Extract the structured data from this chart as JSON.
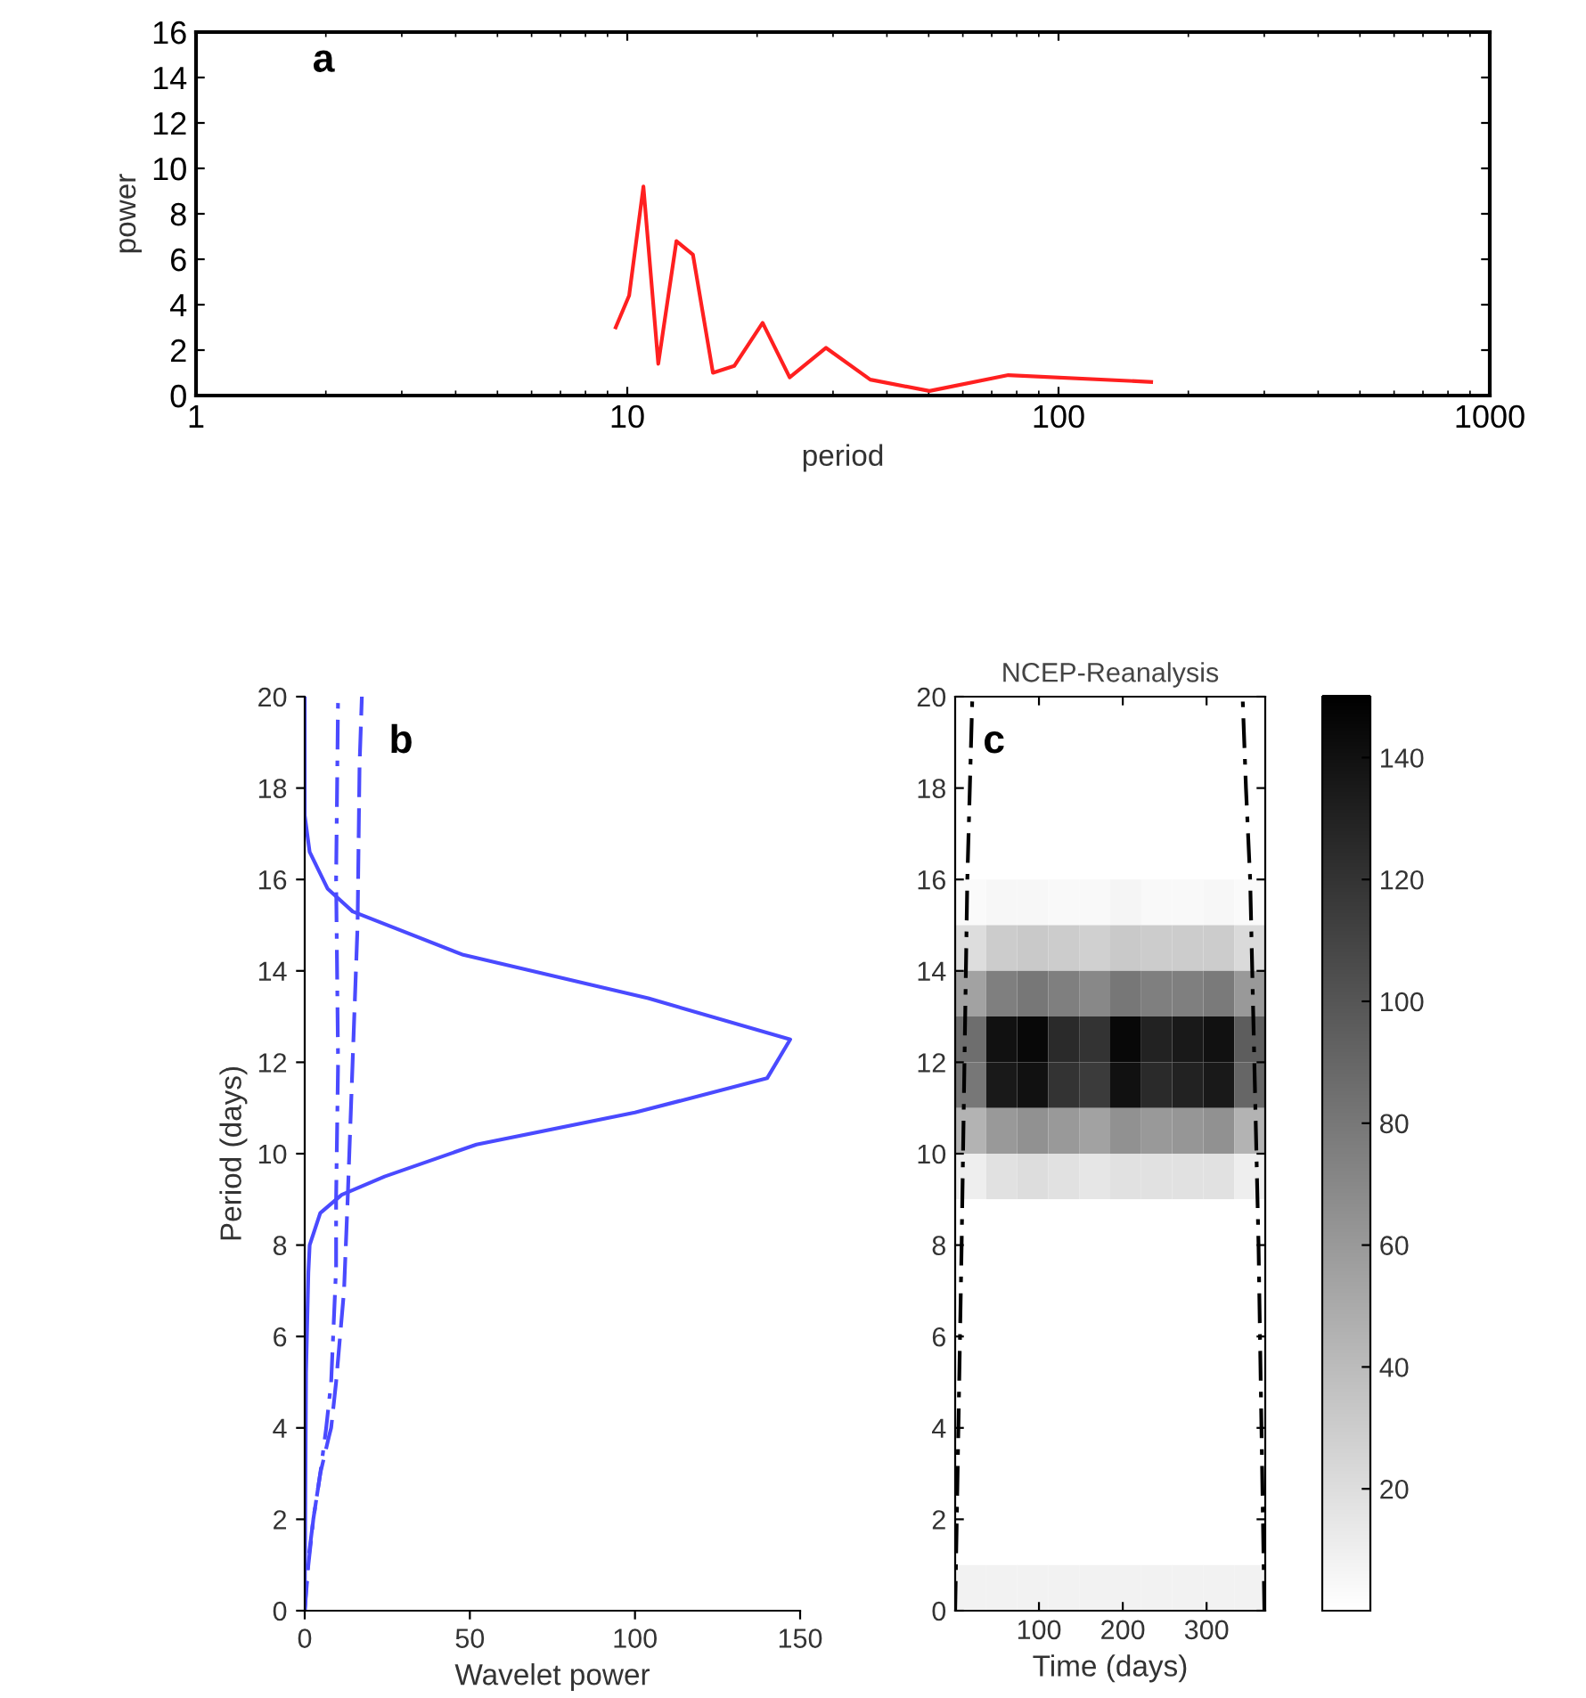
{
  "chart_data": [
    {
      "type": "line",
      "xlabel": "period",
      "ylabel": "power",
      "annotations": [
        "a"
      ],
      "log": "x",
      "xlim": [
        1,
        1000
      ],
      "xticks": [
        1,
        10,
        100,
        1000
      ],
      "ylim": [
        0,
        16
      ],
      "yticks": [
        0,
        2,
        4,
        6,
        8,
        10,
        12,
        14,
        16
      ],
      "grid": false,
      "legend": false,
      "series": [
        {
          "color": "#ff2020",
          "x": [
            9.4,
            10.1,
            10.9,
            11.8,
            13.0,
            14.2,
            15.8,
            17.7,
            20.6,
            23.8,
            28.9,
            36.6,
            50.2,
            76.5,
            164
          ],
          "values": [
            3.0,
            4.4,
            9.2,
            1.4,
            6.8,
            6.2,
            1.0,
            1.3,
            3.2,
            0.8,
            2.1,
            0.7,
            0.2,
            0.9,
            0.6
          ]
        }
      ]
    },
    {
      "type": "line",
      "xlabel": "Wavelet power",
      "ylabel": "Period (days)",
      "annotations": [
        "b"
      ],
      "xlim": [
        0,
        150
      ],
      "xticks": [
        0,
        50,
        100,
        150
      ],
      "ylim": [
        0,
        20
      ],
      "yticks": [
        0,
        2,
        4,
        6,
        8,
        10,
        12,
        14,
        16,
        18,
        20
      ],
      "grid": false,
      "legend": false,
      "series": [
        {
          "color": "#4a4aff",
          "line_style": "solid",
          "x": [
            0,
            0.4,
            1.1,
            1.5,
            4.7,
            11.2,
            24.2,
            52,
            100,
            140,
            147,
            104,
            48,
            14.5,
            6.9,
            1.5,
            0,
            0
          ],
          "values": [
            0,
            5.2,
            7.4,
            8.0,
            8.7,
            9.1,
            9.5,
            10.2,
            10.9,
            11.65,
            12.5,
            13.4,
            14.35,
            15.3,
            15.8,
            16.6,
            17.4,
            20
          ]
        },
        {
          "color": "#4a4aff",
          "line_style": "dashdot",
          "x": [
            0,
            0.9,
            2.6,
            4.7,
            6.5,
            8,
            9.5,
            9.5,
            10.1,
            9.5,
            10.1
          ],
          "values": [
            0,
            1,
            2,
            3,
            4,
            5,
            7.5,
            9,
            12,
            16,
            20
          ]
        },
        {
          "color": "#4a4aff",
          "line_style": "dashed",
          "x": [
            0,
            1.1,
            2.6,
            4.7,
            7.3,
            8,
            9.5,
            11.9,
            13,
            14.5,
            16,
            16.6,
            17.3
          ],
          "values": [
            0,
            1,
            2,
            3,
            3.8,
            4,
            5,
            7,
            9,
            12,
            15,
            18.5,
            20
          ]
        }
      ]
    },
    {
      "type": "heatmap",
      "title": "NCEP-Reanalysis",
      "xlabel": "Time (days)",
      "annotations": [
        "c"
      ],
      "xlim": [
        0,
        370
      ],
      "xticks": [
        100,
        200,
        300
      ],
      "ylim": [
        0,
        20
      ],
      "yticks": [
        0,
        2,
        4,
        6,
        8,
        10,
        12,
        14,
        16,
        18,
        20
      ],
      "clim": [
        0,
        150
      ],
      "cticks": [
        20,
        40,
        60,
        80,
        100,
        120,
        140
      ],
      "x": [
        18.5,
        55.5,
        92.5,
        129.5,
        166.5,
        203.5,
        240.5,
        277.5,
        314.5,
        351.5
      ],
      "y": [
        19.5,
        18.5,
        17.5,
        16.5,
        15.5,
        14.5,
        13.5,
        12.5,
        11.5,
        10.5,
        9.5,
        8.5,
        7.5,
        6.5,
        5.5,
        4.5,
        3.5,
        2.5,
        1.5,
        0.5
      ],
      "cells": [
        [
          0,
          0,
          0,
          0,
          0,
          0,
          0,
          0,
          0,
          0
        ],
        [
          0,
          0,
          0,
          0,
          0,
          0,
          0,
          0,
          0,
          0
        ],
        [
          0,
          0,
          0,
          0,
          0,
          0,
          0,
          0,
          0,
          0
        ],
        [
          0,
          0,
          0,
          0,
          0,
          0,
          0,
          0,
          0,
          0
        ],
        [
          3,
          5,
          5,
          4,
          4,
          6,
          4,
          4,
          5,
          3
        ],
        [
          20,
          30,
          32,
          30,
          28,
          32,
          30,
          30,
          30,
          22
        ],
        [
          55,
          75,
          80,
          75,
          70,
          80,
          75,
          75,
          78,
          60
        ],
        [
          85,
          140,
          145,
          125,
          120,
          145,
          130,
          135,
          140,
          95
        ],
        [
          80,
          135,
          140,
          120,
          115,
          140,
          125,
          130,
          135,
          90
        ],
        [
          45,
          60,
          65,
          60,
          55,
          65,
          60,
          62,
          65,
          45
        ],
        [
          10,
          18,
          20,
          18,
          15,
          18,
          18,
          18,
          18,
          10
        ],
        [
          0,
          0,
          0,
          0,
          0,
          0,
          0,
          0,
          0,
          0
        ],
        [
          0,
          0,
          0,
          0,
          0,
          0,
          0,
          0,
          0,
          0
        ],
        [
          0,
          0,
          0,
          0,
          0,
          0,
          0,
          0,
          0,
          0
        ],
        [
          0,
          0,
          0,
          0,
          0,
          0,
          0,
          0,
          0,
          0
        ],
        [
          0,
          0,
          0,
          0,
          0,
          0,
          0,
          0,
          0,
          0
        ],
        [
          0,
          0,
          0,
          0,
          0,
          0,
          0,
          0,
          0,
          0
        ],
        [
          0,
          0,
          0,
          0,
          0,
          0,
          0,
          0,
          0,
          0
        ],
        [
          0,
          0,
          0,
          0,
          0,
          0,
          0,
          0,
          0,
          0
        ],
        [
          8,
          8,
          8,
          8,
          8,
          8,
          8,
          8,
          8,
          8
        ]
      ],
      "series": [
        {
          "type": "line",
          "color": "#000000",
          "line_style": "dashdot",
          "x": [
            0,
            7.7,
            14.5,
            20.5
          ],
          "values": [
            0,
            8,
            16,
            20
          ]
        },
        {
          "type": "line",
          "color": "#000000",
          "line_style": "dashdot",
          "x": [
            369,
            362,
            352,
            347,
            343
          ],
          "values": [
            0,
            8,
            16,
            18,
            20
          ]
        }
      ]
    }
  ]
}
